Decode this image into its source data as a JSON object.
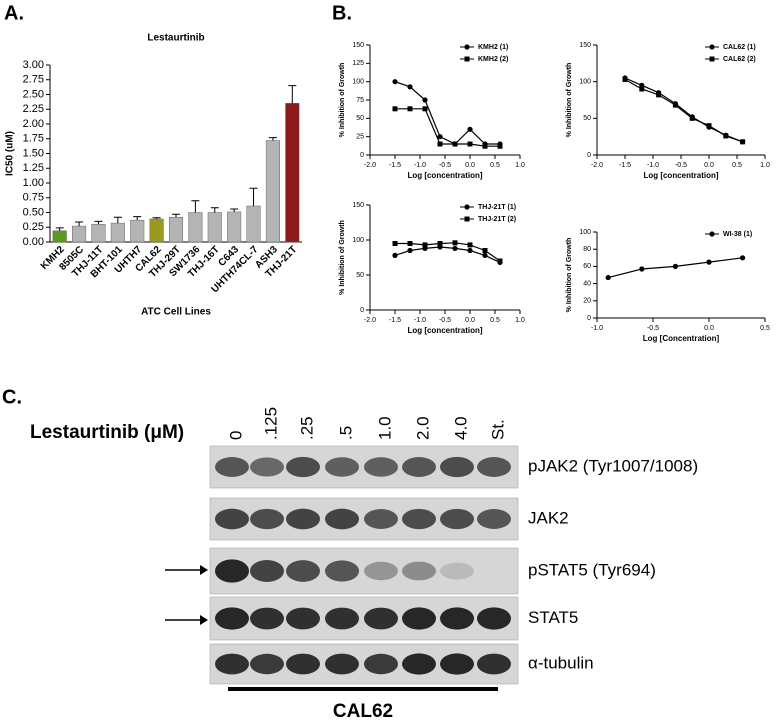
{
  "panel_labels": [
    "A.",
    "B.",
    "C."
  ],
  "chart_data": [
    {
      "type": "bar",
      "title": "Lestaurtinib",
      "ylabel": "IC50 (uM)",
      "xlabel": "ATC Cell Lines",
      "categories": [
        "KMH2",
        "8505C",
        "THJ-11T",
        "BHT-101",
        "UHTH7",
        "CAL62",
        "THJ-29T",
        "SW1736",
        "THJ-16T",
        "C643",
        "UHTH74CL-7",
        "ASH3",
        "THJ-21T"
      ],
      "values": [
        0.19,
        0.27,
        0.3,
        0.32,
        0.37,
        0.39,
        0.42,
        0.5,
        0.5,
        0.51,
        0.61,
        1.72,
        2.35
      ],
      "errors": [
        0.05,
        0.07,
        0.05,
        0.1,
        0.06,
        0.02,
        0.05,
        0.2,
        0.08,
        0.05,
        0.3,
        0.05,
        0.3
      ],
      "colors": [
        "#5b9a1c",
        "#b4b4b4",
        "#b4b4b4",
        "#b4b4b4",
        "#b4b4b4",
        "#9c9a1e",
        "#b4b4b4",
        "#b4b4b4",
        "#b4b4b4",
        "#b4b4b4",
        "#b4b4b4",
        "#b4b4b4",
        "#8c1a1a"
      ],
      "ylim": [
        0,
        3.0
      ],
      "yticks": [
        {
          "value": 0,
          "label": "0.00"
        },
        {
          "value": 0.25,
          "label": "0.25"
        },
        {
          "value": 0.5,
          "label": "0.50"
        },
        {
          "value": 0.75,
          "label": "0.75"
        },
        {
          "value": 1.0,
          "label": "1.00"
        },
        {
          "value": 1.25,
          "label": "1.25"
        },
        {
          "value": 1.5,
          "label": "1.50"
        },
        {
          "value": 1.75,
          "label": "1.75"
        },
        {
          "value": 2.0,
          "label": "2.00"
        },
        {
          "value": 2.25,
          "label": "2.25"
        },
        {
          "value": 2.5,
          "label": "2.50"
        },
        {
          "value": 2.75,
          "label": "2.75"
        },
        {
          "value": 3.0,
          "label": "3.00"
        }
      ]
    },
    {
      "type": "line",
      "ylabel": "% Inhibition of Growth",
      "xlabel": "Log [concentration]",
      "x": [
        -1.5,
        -1.2,
        -0.9,
        -0.6,
        -0.3,
        0,
        0.3,
        0.6
      ],
      "series": [
        {
          "name": "KMH2 (1)",
          "color": "#000000",
          "marker": "circle",
          "values": [
            100,
            93,
            75,
            25,
            15,
            35,
            15,
            15
          ]
        },
        {
          "name": "KMH2 (2)",
          "color": "#000000",
          "marker": "square",
          "values": [
            63,
            63,
            63,
            15,
            15,
            15,
            12,
            12
          ]
        }
      ],
      "xlim": [
        -2,
        1
      ],
      "xticks": [
        {
          "value": -2,
          "label": "-2.0"
        },
        {
          "value": -1.5,
          "label": "-1.5"
        },
        {
          "value": -1,
          "label": "-1.0"
        },
        {
          "value": -0.5,
          "label": "-0.5"
        },
        {
          "value": 0,
          "label": "0.0"
        },
        {
          "value": 0.5,
          "label": "0.5"
        },
        {
          "value": 1,
          "label": "1.0"
        }
      ],
      "ylim": [
        0,
        150
      ],
      "yticks": [
        0,
        25,
        50,
        75,
        100,
        125,
        150
      ]
    },
    {
      "type": "line",
      "ylabel": "% Inhibition of Growth",
      "xlabel": "Log [concentration]",
      "x": [
        -1.5,
        -1.2,
        -0.9,
        -0.6,
        -0.3,
        0,
        0.3,
        0.6
      ],
      "series": [
        {
          "name": "CAL62 (1)",
          "color": "#000000",
          "marker": "circle",
          "values": [
            105,
            95,
            85,
            70,
            52,
            38,
            27,
            18
          ]
        },
        {
          "name": "CAL62 (2)",
          "color": "#000000",
          "marker": "square",
          "values": [
            103,
            90,
            82,
            68,
            50,
            40,
            26,
            18
          ]
        }
      ],
      "xlim": [
        -2,
        1
      ],
      "xticks": [
        {
          "value": -2,
          "label": "-2.0"
        },
        {
          "value": -1.5,
          "label": "-1.5"
        },
        {
          "value": -1,
          "label": "-1.0"
        },
        {
          "value": -0.5,
          "label": "-0.5"
        },
        {
          "value": 0,
          "label": "0.0"
        },
        {
          "value": 0.5,
          "label": "0.5"
        },
        {
          "value": 1,
          "label": "1.0"
        }
      ],
      "ylim": [
        0,
        150
      ],
      "yticks": [
        0,
        50,
        100,
        150
      ]
    },
    {
      "type": "line",
      "ylabel": "% Inhibition of Growth",
      "xlabel": "Log [concentration]",
      "x": [
        -1.5,
        -1.2,
        -0.9,
        -0.6,
        -0.3,
        0,
        0.3,
        0.6
      ],
      "series": [
        {
          "name": "THJ-21T (1)",
          "color": "#000000",
          "marker": "circle",
          "values": [
            78,
            85,
            88,
            90,
            88,
            85,
            78,
            68
          ]
        },
        {
          "name": "THJ-21T (2)",
          "color": "#000000",
          "marker": "square",
          "values": [
            95,
            95,
            93,
            95,
            96,
            93,
            85,
            70
          ]
        }
      ],
      "xlim": [
        -2,
        1
      ],
      "xticks": [
        {
          "value": -2,
          "label": "-2.0"
        },
        {
          "value": -1.5,
          "label": "-1.5"
        },
        {
          "value": -1,
          "label": "-1.0"
        },
        {
          "value": -0.5,
          "label": "-0.5"
        },
        {
          "value": 0,
          "label": "0.0"
        },
        {
          "value": 0.5,
          "label": "0.5"
        },
        {
          "value": 1,
          "label": "1.0"
        }
      ],
      "ylim": [
        0,
        150
      ],
      "yticks": [
        0,
        50,
        100,
        150
      ]
    },
    {
      "type": "line",
      "ylabel": "% Inhibition of Growth",
      "xlabel": "Log [Concentration]",
      "x": [
        -0.9,
        -0.6,
        -0.3,
        0,
        0.3
      ],
      "series": [
        {
          "name": "WI-38 (1)",
          "color": "#000000",
          "marker": "circle",
          "values": [
            47,
            57,
            60,
            65,
            70
          ]
        }
      ],
      "xlim": [
        -1,
        0.5
      ],
      "xticks": [
        {
          "value": -1,
          "label": "-1.0"
        },
        {
          "value": -0.5,
          "label": "-0.5"
        },
        {
          "value": 0,
          "label": "0.0"
        },
        {
          "value": 0.5,
          "label": "0.5"
        }
      ],
      "ylim": [
        0,
        100
      ],
      "yticks": [
        0,
        20,
        40,
        60,
        80,
        100
      ]
    }
  ],
  "blot": {
    "treatment_label": "Lestaurtinib (μM)",
    "lanes": [
      "0",
      ".125",
      ".25",
      ".5",
      "1.0",
      "2.0",
      "4.0",
      "St."
    ],
    "rows": [
      "pJAK2 (Tyr1007/1008)",
      "JAK2",
      "pSTAT5 (Tyr694)",
      "STAT5",
      "α-tubulin"
    ],
    "cell_line": "CAL62"
  }
}
